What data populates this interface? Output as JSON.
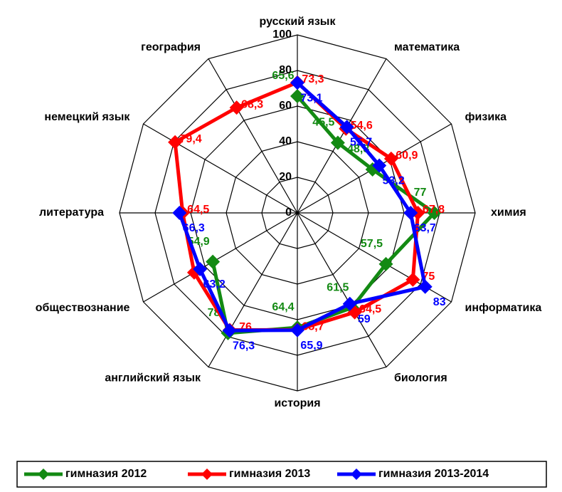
{
  "chart_data": {
    "type": "radar",
    "categories": [
      "русский язык",
      "математика",
      "физика",
      "химия",
      "информатика",
      "биология",
      "история",
      "английский язык",
      "обществознание",
      "литература",
      "немецкий язык",
      "география"
    ],
    "ylim": [
      0,
      100
    ],
    "yticks": [
      0,
      20,
      40,
      60,
      80,
      100
    ],
    "legend": "bottom",
    "series": [
      {
        "name": "гимназия 2012",
        "color": "#138a13",
        "values": [
          65.6,
          45.5,
          48.8,
          77,
          57.5,
          61.5,
          64.4,
          78,
          54.9,
          null,
          null,
          null
        ],
        "value_labels": [
          "65,6",
          "45,5",
          "48,8",
          "77",
          "57,5",
          "61,5",
          "64,4",
          "78",
          "54,9",
          null,
          null,
          null
        ]
      },
      {
        "name": "гимназия 2013",
        "color": "#ff0000",
        "values": [
          73.3,
          54.6,
          60.9,
          67.8,
          75,
          64.5,
          65.7,
          76,
          67,
          64.5,
          79.4,
          68.3
        ],
        "value_labels": [
          "73,3",
          "54,6",
          "60,9",
          "67,8",
          "75",
          "64,5",
          "65,7",
          "76",
          null,
          "64,5",
          "79,4",
          "68,3"
        ]
      },
      {
        "name": "гимназия 2013-2014",
        "color": "#0000ff",
        "values": [
          73.1,
          55.7,
          53.2,
          63.7,
          83,
          59,
          65.9,
          76.3,
          63.2,
          66.3,
          null,
          null
        ],
        "value_labels": [
          "73,1",
          "55,7",
          "53,2",
          "63,7",
          "83",
          "59",
          "65,9",
          "76,3",
          "63,2",
          "66,3",
          null,
          null
        ]
      }
    ]
  }
}
